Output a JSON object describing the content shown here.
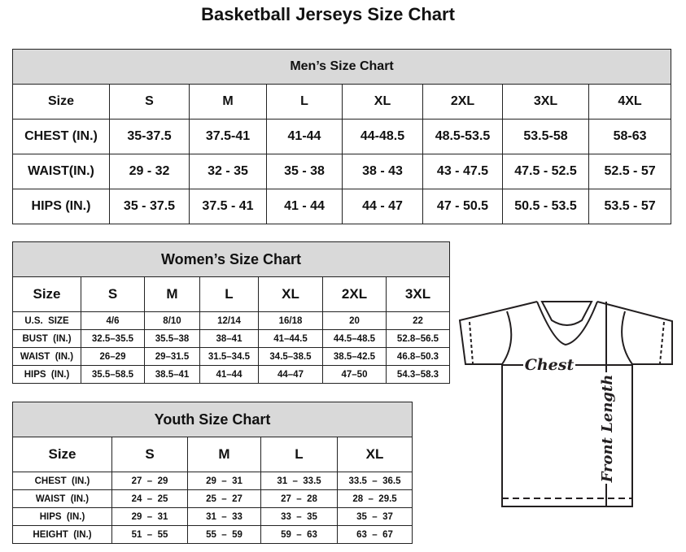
{
  "title": "Basketball Jerseys Size Chart",
  "header_color": "#d9d9d9",
  "men": {
    "heading": "Men’s Size Chart",
    "columns": [
      "Size",
      "S",
      "M",
      "L",
      "XL",
      "2XL",
      "3XL",
      "4XL"
    ],
    "rows": [
      [
        "CHEST (IN.)",
        "35-37.5",
        "37.5-41",
        "41-44",
        "44-48.5",
        "48.5-53.5",
        "53.5-58",
        "58-63"
      ],
      [
        "WAIST(IN.)",
        "29 - 32",
        "32 - 35",
        "35 - 38",
        "38 - 43",
        "43 - 47.5",
        "47.5 - 52.5",
        "52.5 - 57"
      ],
      [
        "HIPS (IN.)",
        "35 - 37.5",
        "37.5 - 41",
        "41 - 44",
        "44 - 47",
        "47 - 50.5",
        "50.5 - 53.5",
        "53.5 - 57"
      ]
    ]
  },
  "women": {
    "heading": "Women’s Size Chart",
    "columns": [
      "Size",
      "S",
      "M",
      "L",
      "XL",
      "2XL",
      "3XL"
    ],
    "rows": [
      [
        "U.S.  SIZE",
        "4/6",
        "8/10",
        "12/14",
        "16/18",
        "20",
        "22"
      ],
      [
        "BUST  (IN.)",
        "32.5–35.5",
        "35.5–38",
        "38–41",
        "41–44.5",
        "44.5–48.5",
        "52.8–56.5"
      ],
      [
        "WAIST  (IN.)",
        "26–29",
        "29–31.5",
        "31.5–34.5",
        "34.5–38.5",
        "38.5–42.5",
        "46.8–50.3"
      ],
      [
        "HIPS  (IN.)",
        "35.5–58.5",
        "38.5–41",
        "41–44",
        "44–47",
        "47–50",
        "54.3–58.3"
      ]
    ]
  },
  "youth": {
    "heading": "Youth Size Chart",
    "columns": [
      "Size",
      "S",
      "M",
      "L",
      "XL"
    ],
    "rows": [
      [
        "CHEST  (IN.)",
        "27  –  29",
        "29  –  31",
        "31  –  33.5",
        "33.5  –  36.5"
      ],
      [
        "WAIST  (IN.)",
        "24  –  25",
        "25  –  27",
        "27  –  28",
        "28  –  29.5"
      ],
      [
        "HIPS  (IN.)",
        "29  –  31",
        "31  –  33",
        "33  –  35",
        "35  –  37"
      ],
      [
        "HEIGHT  (IN.)",
        "51  –  55",
        "55  –  59",
        "59  –  63",
        "63  –  67"
      ]
    ]
  },
  "diagram": {
    "chest_label": "Chest",
    "length_label": "Front Length"
  }
}
